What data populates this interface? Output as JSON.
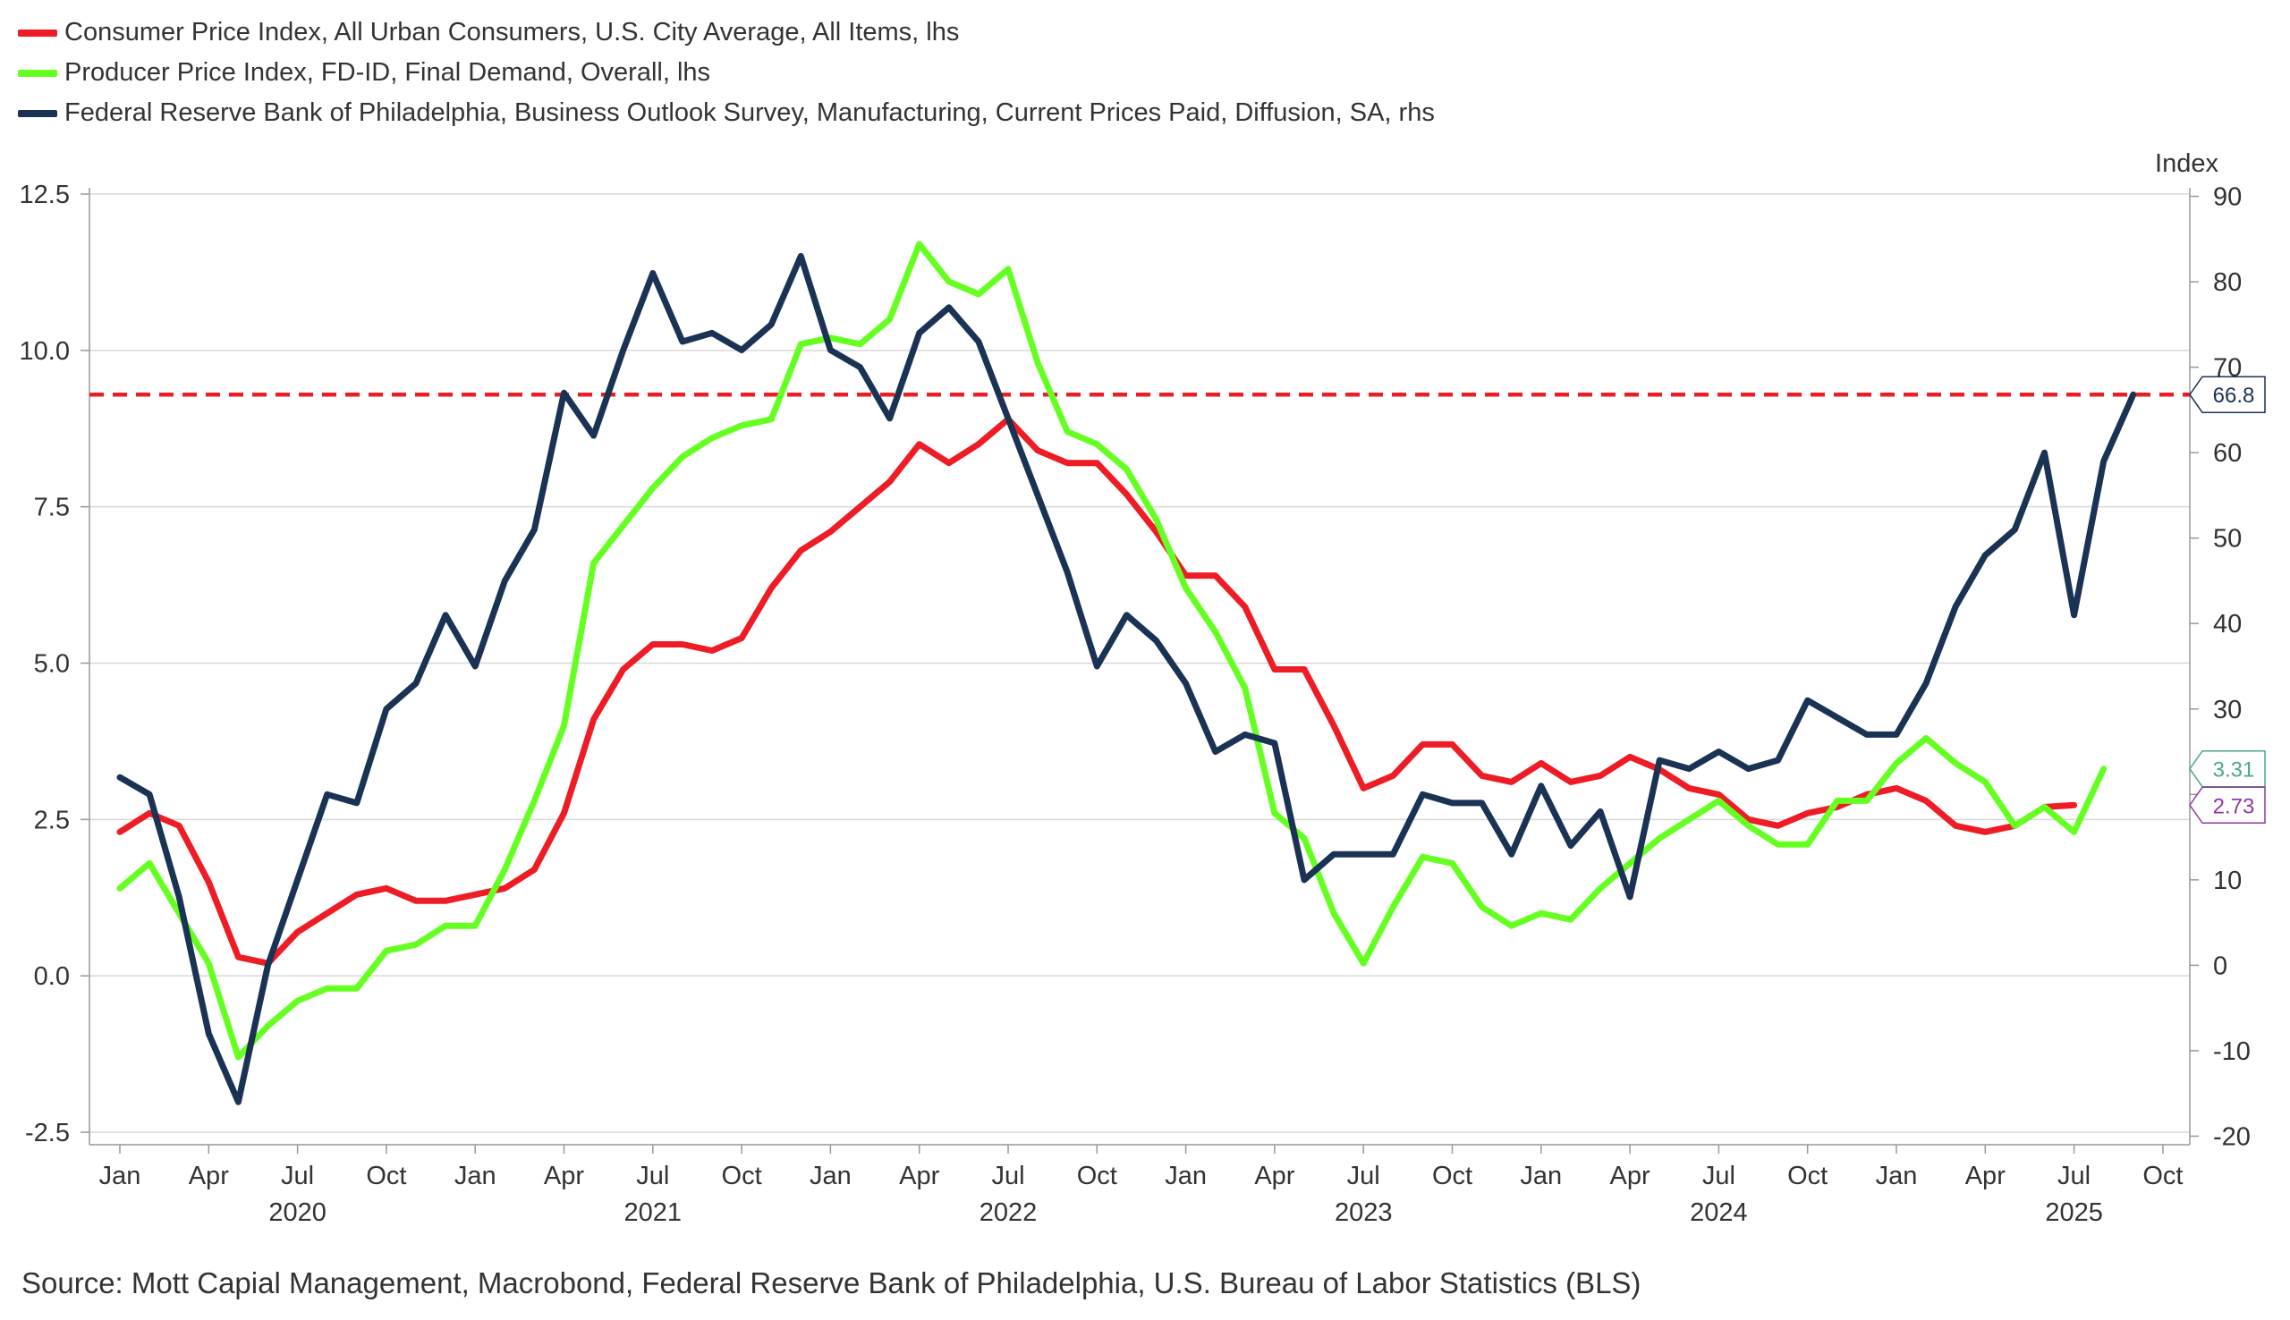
{
  "chart_data": {
    "type": "line",
    "title": "",
    "source": "Source: Mott Capial Management, Macrobond, Federal Reserve Bank of Philadelphia, U.S. Bureau of Labor Statistics (BLS)",
    "left_axis": {
      "ylim": [
        -2.7,
        12.6
      ],
      "ticks": [
        12.5,
        10.0,
        7.5,
        5.0,
        2.5,
        0.0,
        -2.5
      ],
      "tick_labels": [
        "12.5",
        "10.0",
        "7.5",
        "5.0",
        "2.5",
        "0.0",
        "-2.5"
      ]
    },
    "right_axis": {
      "label": "Index",
      "ylim": [
        -21,
        91
      ],
      "ticks": [
        90,
        80,
        70,
        60,
        50,
        40,
        30,
        20,
        10,
        0,
        -10,
        -20
      ],
      "tick_labels": [
        "90",
        "80",
        "70",
        "60",
        "50",
        "40",
        "30",
        "20",
        "10",
        "0",
        "-10",
        "-20"
      ]
    },
    "x_axis": {
      "start": "2020-01",
      "month_ticks": [
        {
          "label": "Jan",
          "m": 0
        },
        {
          "label": "Apr",
          "m": 3
        },
        {
          "label": "Jul",
          "m": 6
        },
        {
          "label": "Oct",
          "m": 9
        },
        {
          "label": "Jan",
          "m": 12
        },
        {
          "label": "Apr",
          "m": 15
        },
        {
          "label": "Jul",
          "m": 18
        },
        {
          "label": "Oct",
          "m": 21
        },
        {
          "label": "Jan",
          "m": 24
        },
        {
          "label": "Apr",
          "m": 27
        },
        {
          "label": "Jul",
          "m": 30
        },
        {
          "label": "Oct",
          "m": 33
        },
        {
          "label": "Jan",
          "m": 36
        },
        {
          "label": "Apr",
          "m": 39
        },
        {
          "label": "Jul",
          "m": 42
        },
        {
          "label": "Oct",
          "m": 45
        },
        {
          "label": "Jan",
          "m": 48
        },
        {
          "label": "Apr",
          "m": 51
        },
        {
          "label": "Jul",
          "m": 54
        },
        {
          "label": "Oct",
          "m": 57
        },
        {
          "label": "Jan",
          "m": 60
        },
        {
          "label": "Apr",
          "m": 63
        },
        {
          "label": "Jul",
          "m": 66
        },
        {
          "label": "Oct",
          "m": 69
        }
      ],
      "year_labels": [
        {
          "label": "2020",
          "m": 6
        },
        {
          "label": "2021",
          "m": 18
        },
        {
          "label": "2022",
          "m": 30
        },
        {
          "label": "2023",
          "m": 42
        },
        {
          "label": "2024",
          "m": 54
        },
        {
          "label": "2025",
          "m": 66
        }
      ]
    },
    "series": [
      {
        "name": "Consumer Price Index, All Urban Consumers, U.S. City Average, All Items, lhs",
        "axis": "left",
        "color": "#ee1c25",
        "values": [
          2.3,
          2.6,
          2.4,
          1.5,
          0.3,
          0.2,
          0.7,
          1.0,
          1.3,
          1.4,
          1.2,
          1.2,
          1.3,
          1.4,
          1.7,
          2.6,
          4.1,
          4.9,
          5.3,
          5.3,
          5.2,
          5.4,
          6.2,
          6.8,
          7.1,
          7.5,
          7.9,
          8.5,
          8.2,
          8.5,
          8.9,
          8.4,
          8.2,
          8.2,
          7.7,
          7.1,
          6.4,
          6.4,
          5.9,
          4.9,
          4.9,
          4.0,
          3.0,
          3.2,
          3.7,
          3.7,
          3.2,
          3.1,
          3.4,
          3.1,
          3.2,
          3.5,
          3.3,
          3.0,
          2.9,
          2.5,
          2.4,
          2.6,
          2.7,
          2.9,
          3.0,
          2.8,
          2.4,
          2.3,
          2.4,
          2.7,
          2.73
        ]
      },
      {
        "name": "Producer Price Index, FD-ID, Final Demand, Overall, lhs",
        "axis": "left",
        "color": "#66ff22",
        "values": [
          1.4,
          1.8,
          1.0,
          0.2,
          -1.3,
          -0.8,
          -0.4,
          -0.2,
          -0.2,
          0.4,
          0.5,
          0.8,
          0.8,
          1.7,
          2.8,
          4.0,
          6.6,
          7.2,
          7.8,
          8.3,
          8.6,
          8.8,
          8.9,
          10.1,
          10.2,
          10.1,
          10.5,
          11.7,
          11.1,
          10.9,
          11.3,
          9.8,
          8.7,
          8.5,
          8.1,
          7.3,
          6.2,
          5.5,
          4.6,
          2.6,
          2.2,
          1.0,
          0.2,
          1.1,
          1.9,
          1.8,
          1.1,
          0.8,
          1.0,
          0.9,
          1.4,
          1.8,
          2.2,
          2.5,
          2.8,
          2.4,
          2.1,
          2.1,
          2.8,
          2.8,
          3.4,
          3.8,
          3.4,
          3.1,
          2.4,
          2.7,
          2.3,
          3.31
        ]
      },
      {
        "name": "Federal Reserve Bank of Philadelphia, Business Outlook Survey, Manufacturing, Current Prices Paid, Diffusion, SA, rhs",
        "axis": "right",
        "color": "#1a3355",
        "values": [
          22,
          20,
          8,
          -8,
          -16,
          0,
          10,
          20,
          19,
          30,
          33,
          41,
          35,
          45,
          51,
          67,
          62,
          72,
          81,
          73,
          74,
          72,
          75,
          83,
          72,
          70,
          64,
          74,
          77,
          73,
          64,
          55,
          46,
          35,
          41,
          38,
          33,
          25,
          27,
          26,
          10,
          13,
          13,
          13,
          20,
          19,
          19,
          13,
          21,
          14,
          18,
          8,
          24,
          23,
          25,
          23,
          24,
          31,
          29,
          27,
          27,
          33,
          42,
          48,
          51,
          60,
          41,
          59,
          66.8
        ]
      }
    ],
    "reference_line": {
      "axis": "right",
      "value": 66.8,
      "color": "#ee1c25",
      "style": "dashed"
    },
    "value_labels": [
      {
        "text": "66.8",
        "axis": "right",
        "value": 66.8,
        "color": "#1a3355"
      },
      {
        "text": "3.31",
        "axis": "left",
        "value": 3.31,
        "color": "#4aa98c"
      },
      {
        "text": "2.73",
        "axis": "left",
        "value": 2.73,
        "color": "#8e3aa1"
      }
    ]
  }
}
